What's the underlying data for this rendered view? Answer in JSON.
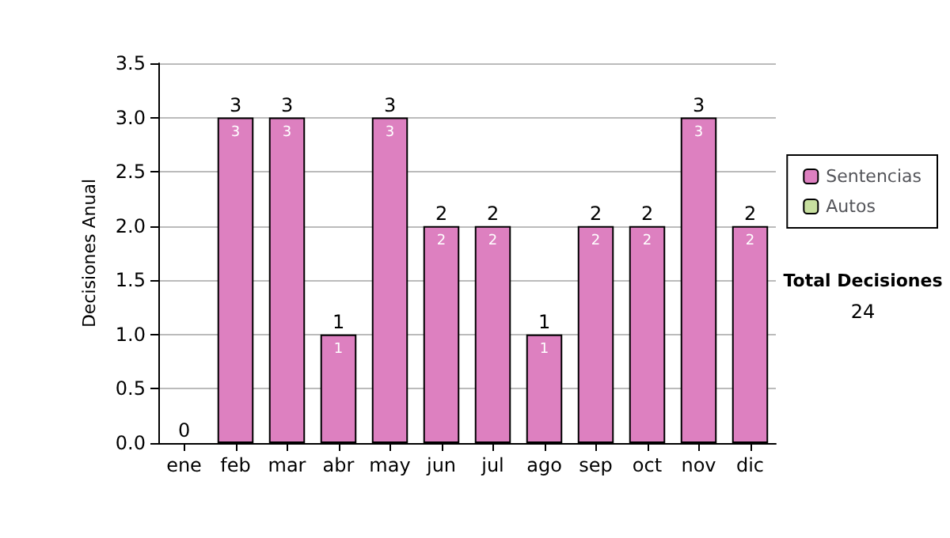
{
  "chart_data": {
    "type": "bar",
    "stacked": true,
    "ylabel": "Decisiones Anual",
    "categories": [
      "ene",
      "feb",
      "mar",
      "abr",
      "may",
      "jun",
      "jul",
      "ago",
      "sep",
      "oct",
      "nov",
      "dic"
    ],
    "series": [
      {
        "name": "Sentencias",
        "color": "#dd80c0",
        "values": [
          0,
          3,
          3,
          1,
          3,
          2,
          2,
          1,
          2,
          2,
          3,
          2
        ],
        "value_labels": [
          null,
          "3",
          "3",
          "1",
          "3",
          "2",
          "2",
          "1",
          "2",
          "2",
          "3",
          "2"
        ]
      },
      {
        "name": "Autos",
        "color": "#c8e0a0",
        "values": [
          0,
          0,
          0,
          0,
          0,
          0,
          0,
          0,
          0,
          0,
          0,
          0
        ]
      }
    ],
    "totals": [
      "0",
      "3",
      "3",
      "1",
      "3",
      "2",
      "2",
      "1",
      "2",
      "2",
      "3",
      "2"
    ],
    "ylim": [
      0,
      3.5
    ],
    "yticks": [
      {
        "value": 0,
        "label": "0.0"
      },
      {
        "value": 0.5,
        "label": "0.5"
      },
      {
        "value": 1,
        "label": "1.0"
      },
      {
        "value": 1.5,
        "label": "1.5"
      },
      {
        "value": 2,
        "label": "2.0"
      },
      {
        "value": 2.5,
        "label": "2.5"
      },
      {
        "value": 3,
        "label": "3.0"
      },
      {
        "value": 3.5,
        "label": "3.5"
      }
    ],
    "grid": "y",
    "legend": "right",
    "annotations": [
      "Total Decisiones",
      "24"
    ]
  }
}
